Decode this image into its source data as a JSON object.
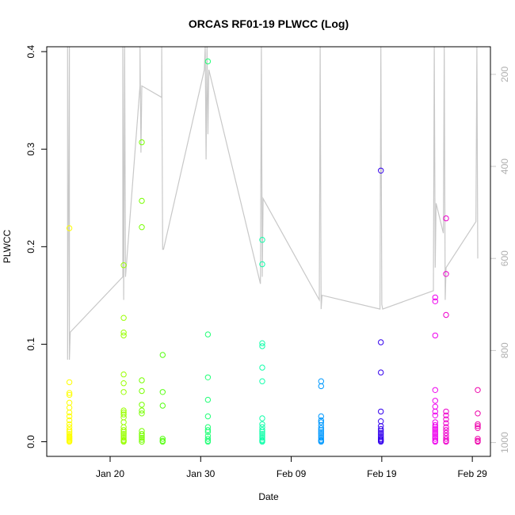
{
  "chart_data": {
    "type": "scatter",
    "title": "ORCAS RF01-19 PLWCC (Log)",
    "xlabel": "Date",
    "ylabel": "PLWCC",
    "xlim": [
      "2016-01-13",
      "2016-03-02"
    ],
    "ylim": [
      -0.015,
      0.405
    ],
    "x_ticks": [
      {
        "date": "2016-01-20",
        "label": "Jan 20"
      },
      {
        "date": "2016-01-30",
        "label": "Jan 30"
      },
      {
        "date": "2016-02-09",
        "label": "Feb 09"
      },
      {
        "date": "2016-02-19",
        "label": "Feb 19"
      },
      {
        "date": "2016-02-29",
        "label": "Feb 29"
      }
    ],
    "y_ticks": [
      {
        "value": 0.0,
        "label": "0.0"
      },
      {
        "value": 0.1,
        "label": "0.1"
      },
      {
        "value": 0.2,
        "label": "0.2"
      },
      {
        "value": 0.3,
        "label": "0.3"
      },
      {
        "value": 0.4,
        "label": "0.4"
      }
    ],
    "secondary_axis": {
      "side": "right",
      "reversed": true,
      "range": [
        140,
        1030
      ],
      "ticks": [
        {
          "value": 200,
          "label": "200"
        },
        {
          "value": 400,
          "label": "400"
        },
        {
          "value": 600,
          "label": "600"
        },
        {
          "value": 800,
          "label": "800"
        },
        {
          "value": 1000,
          "label": "1000"
        }
      ],
      "color": "#c8c8c8"
    },
    "flights": [
      {
        "date": "2016-01-15.5",
        "color": "#ffff00",
        "values": [
          0.219,
          0.061,
          0.05,
          0.048,
          0.04,
          0.035,
          0.03,
          0.026,
          0.022,
          0.018,
          0.015,
          0.012,
          0.01,
          0.008,
          0.006,
          0.005,
          0.004,
          0.003,
          0.002,
          0.001,
          0.0
        ]
      },
      {
        "date": "2016-01-21.5",
        "color": "#99ff00",
        "values": [
          0.181,
          0.127,
          0.112,
          0.109,
          0.069,
          0.06,
          0.051,
          0.032,
          0.03,
          0.028,
          0.025,
          0.02,
          0.015,
          0.012,
          0.01,
          0.008,
          0.006,
          0.004,
          0.002,
          0.001,
          0.0
        ]
      },
      {
        "date": "2016-01-23.5",
        "color": "#77ff00",
        "values": [
          0.307,
          0.247,
          0.22,
          0.063,
          0.052,
          0.038,
          0.032,
          0.029,
          0.011,
          0.008,
          0.006,
          0.004,
          0.002,
          0.0
        ]
      },
      {
        "date": "2016-01-25.8",
        "color": "#55ff11",
        "values": [
          0.089,
          0.051,
          0.037,
          0.003,
          0.001,
          0.0
        ]
      },
      {
        "date": "2016-01-30.8",
        "color": "#22ff77",
        "values": [
          0.39,
          0.11,
          0.066,
          0.043,
          0.026,
          0.015,
          0.012,
          0.01,
          0.006,
          0.003,
          0.001,
          0.0
        ]
      },
      {
        "date": "2016-02-05.8",
        "color": "#11ffaa",
        "values": [
          0.207,
          0.182,
          0.101,
          0.098,
          0.076,
          0.062,
          0.024,
          0.018,
          0.015,
          0.012,
          0.01,
          0.008,
          0.006,
          0.004,
          0.002,
          0.001,
          0.0
        ]
      },
      {
        "date": "2016-02-12.3",
        "color": "#0099ff",
        "values": [
          0.062,
          0.057,
          0.026,
          0.022,
          0.02,
          0.017,
          0.014,
          0.012,
          0.01,
          0.008,
          0.006,
          0.004,
          0.002,
          0.001,
          0.0
        ]
      },
      {
        "date": "2016-02-18.9",
        "color": "#3300ee",
        "values": [
          0.278,
          0.102,
          0.071,
          0.031,
          0.021,
          0.016,
          0.013,
          0.011,
          0.009,
          0.007,
          0.005,
          0.003,
          0.002,
          0.001,
          0.0
        ]
      },
      {
        "date": "2016-02-24.9",
        "color": "#ee00ee",
        "values": [
          0.148,
          0.144,
          0.109,
          0.053,
          0.042,
          0.036,
          0.031,
          0.027,
          0.02,
          0.017,
          0.015,
          0.013,
          0.011,
          0.009,
          0.007,
          0.005,
          0.003,
          0.001,
          0.0
        ]
      },
      {
        "date": "2016-02-26.1",
        "color": "#ee00cc",
        "values": [
          0.229,
          0.172,
          0.13,
          0.031,
          0.027,
          0.023,
          0.019,
          0.015,
          0.012,
          0.009,
          0.006,
          0.003,
          0.001,
          0.0
        ]
      },
      {
        "date": "2016-02-29.6",
        "color": "#ee00aa",
        "values": [
          0.053,
          0.029,
          0.018,
          0.016,
          0.014,
          0.003,
          0.001,
          0.0
        ]
      }
    ],
    "pressure_trace": {
      "color": "#c8c8c8",
      "points": [
        [
          "2016-01-15.3",
          140
        ],
        [
          "2016-01-15.3",
          820
        ],
        [
          "2016-01-15.5",
          140
        ],
        [
          "2016-01-15.5",
          820
        ],
        [
          "2016-01-15.6",
          760
        ],
        [
          "2016-01-21.4",
          640
        ],
        [
          "2016-01-21.4",
          140
        ],
        [
          "2016-01-21.5",
          690
        ],
        [
          "2016-01-21.6",
          140
        ],
        [
          "2016-01-21.7",
          640
        ],
        [
          "2016-01-23.3",
          225
        ],
        [
          "2016-01-23.3",
          140
        ],
        [
          "2016-01-23.4",
          370
        ],
        [
          "2016-01-23.5",
          225
        ],
        [
          "2016-01-25.7",
          250
        ],
        [
          "2016-01-25.7",
          140
        ],
        [
          "2016-01-25.8",
          580
        ],
        [
          "2016-01-25.9",
          580
        ],
        [
          "2016-01-30.4",
          190
        ],
        [
          "2016-01-30.5",
          140
        ],
        [
          "2016-01-30.6",
          385
        ],
        [
          "2016-01-30.7",
          140
        ],
        [
          "2016-01-30.8",
          330
        ],
        [
          "2016-01-30.9",
          190
        ],
        [
          "2016-02-05.6",
          655
        ],
        [
          "2016-02-05.7",
          140
        ],
        [
          "2016-02-05.8",
          640
        ],
        [
          "2016-02-05.9",
          470
        ],
        [
          "2016-02-12.1",
          690
        ],
        [
          "2016-02-12.2",
          140
        ],
        [
          "2016-02-12.3",
          710
        ],
        [
          "2016-02-12.4",
          680
        ],
        [
          "2016-02-18.8",
          710
        ],
        [
          "2016-02-18.9",
          140
        ],
        [
          "2016-02-19.0",
          700
        ],
        [
          "2016-02-19.1",
          710
        ],
        [
          "2016-02-24.7",
          670
        ],
        [
          "2016-02-24.8",
          140
        ],
        [
          "2016-02-24.9",
          620
        ],
        [
          "2016-02-25.0",
          480
        ],
        [
          "2016-02-25.8",
          545
        ],
        [
          "2016-02-25.9",
          140
        ],
        [
          "2016-02-26.0",
          690
        ],
        [
          "2016-02-26.1",
          620
        ],
        [
          "2016-02-29.4",
          520
        ],
        [
          "2016-02-29.5",
          140
        ],
        [
          "2016-02-29.6",
          600
        ]
      ]
    }
  }
}
